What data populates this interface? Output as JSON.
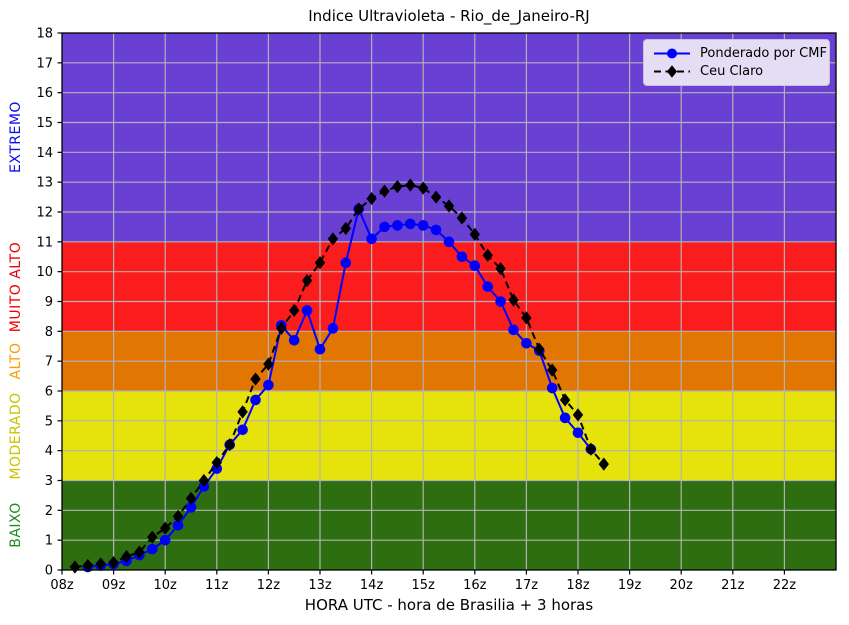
{
  "title": "Indice Ultravioleta - Rio_de_Janeiro-RJ",
  "xlabel": "HORA UTC - hora de Brasilia + 3 horas",
  "legend": [
    {
      "label": "Ponderado por CMF",
      "color": "#0000ff",
      "style": "solid",
      "marker": "circle"
    },
    {
      "label": "Ceu Claro",
      "color": "#000000",
      "style": "dashed",
      "marker": "diamond"
    }
  ],
  "chart_data": {
    "type": "line",
    "title": "Indice Ultravioleta - Rio_de_Janeiro-RJ",
    "xlabel": "HORA UTC - hora de Brasilia + 3 horas",
    "ylabel": "",
    "xlim": [
      8,
      23
    ],
    "ylim": [
      0,
      18
    ],
    "grid": true,
    "grid_color": "#b3b3b3",
    "legend_position": "upper right",
    "x_tick_values": [
      8,
      9,
      10,
      11,
      12,
      13,
      14,
      15,
      16,
      17,
      18,
      19,
      20,
      21,
      22
    ],
    "x_tick_labels": [
      "08z",
      "09z",
      "10z",
      "11z",
      "12z",
      "13z",
      "14z",
      "15z",
      "16z",
      "17z",
      "18z",
      "19z",
      "20z",
      "21z",
      "22z"
    ],
    "y_tick_values": [
      0,
      1,
      2,
      3,
      4,
      5,
      6,
      7,
      8,
      9,
      10,
      11,
      12,
      13,
      14,
      15,
      16,
      17,
      18
    ],
    "bands": [
      {
        "id": "baixo",
        "label": "BAIXO",
        "from": 0,
        "to": 3,
        "fill": "#2d6e10",
        "label_color": "#1f8c1f"
      },
      {
        "id": "moderado",
        "label": "MODERADO",
        "from": 3,
        "to": 6,
        "fill": "#e6e20b",
        "label_color": "#c9c400"
      },
      {
        "id": "alto",
        "label": "ALTO",
        "from": 6,
        "to": 8,
        "fill": "#e27602",
        "label_color": "#ff9d00"
      },
      {
        "id": "muito-alto",
        "label": "MUITO ALTO",
        "from": 8,
        "to": 11,
        "fill": "#fb1d1d",
        "label_color": "#ee0000"
      },
      {
        "id": "extremo",
        "label": "EXTREMO",
        "from": 11,
        "to": 18,
        "fill": "#6a3fd3",
        "label_color": "#0b0bee"
      }
    ],
    "series": [
      {
        "name": "Ponderado por CMF",
        "color": "#0000ff",
        "style": "solid",
        "marker": "circle",
        "x": [
          8.5,
          8.75,
          9,
          9.25,
          9.5,
          9.75,
          10,
          10.25,
          10.5,
          10.75,
          11,
          11.25,
          11.5,
          11.75,
          12,
          12.25,
          12.5,
          12.75,
          13,
          13.25,
          13.5,
          13.75,
          14,
          14.25,
          14.5,
          14.75,
          15,
          15.25,
          15.5,
          15.75,
          16,
          16.25,
          16.5,
          16.75,
          17,
          17.25,
          17.5,
          17.75,
          18,
          18.25
        ],
        "values": [
          0.1,
          0.15,
          0.2,
          0.3,
          0.5,
          0.7,
          1.0,
          1.5,
          2.1,
          2.8,
          3.4,
          4.2,
          4.7,
          5.7,
          6.2,
          8.2,
          7.7,
          8.7,
          7.4,
          8.1,
          10.3,
          12.1,
          11.1,
          11.5,
          11.55,
          11.6,
          11.55,
          11.4,
          11.0,
          10.5,
          10.2,
          9.5,
          9.0,
          8.05,
          7.6,
          7.35,
          6.1,
          5.1,
          4.6,
          4.05
        ]
      },
      {
        "name": "Ceu Claro",
        "color": "#000000",
        "style": "dashed",
        "marker": "diamond",
        "x": [
          8.25,
          8.5,
          8.75,
          9,
          9.25,
          9.5,
          9.75,
          10,
          10.25,
          10.5,
          10.75,
          11,
          11.25,
          11.5,
          11.75,
          12,
          12.25,
          12.5,
          12.75,
          13,
          13.25,
          13.5,
          13.75,
          14,
          14.25,
          14.5,
          14.75,
          15,
          15.25,
          15.5,
          15.75,
          16,
          16.25,
          16.5,
          16.75,
          17,
          17.25,
          17.5,
          17.75,
          18,
          18.25,
          18.5
        ],
        "values": [
          0.1,
          0.15,
          0.2,
          0.25,
          0.45,
          0.6,
          1.1,
          1.4,
          1.8,
          2.4,
          3.0,
          3.6,
          4.2,
          5.3,
          6.4,
          6.9,
          8.1,
          8.7,
          9.7,
          10.3,
          11.1,
          11.45,
          12.1,
          12.45,
          12.7,
          12.85,
          12.9,
          12.8,
          12.5,
          12.2,
          11.8,
          11.25,
          10.55,
          10.1,
          9.05,
          8.45,
          7.4,
          6.7,
          5.7,
          5.2,
          4.05,
          3.55
        ]
      }
    ]
  }
}
